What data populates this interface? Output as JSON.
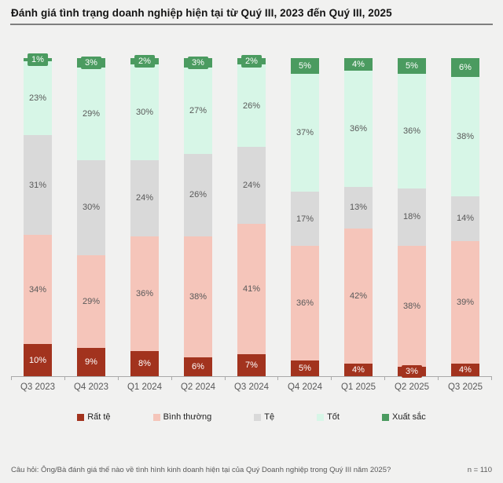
{
  "title": "Đánh giá tình trạng doanh nghiệp hiện tại từ Quý III, 2023 đến Quý III, 2025",
  "chart_data": {
    "type": "bar",
    "stacked": true,
    "orientation": "vertical",
    "unit": "%",
    "categories": [
      "Q3 2023",
      "Q4 2023",
      "Q1 2024",
      "Q2 2024",
      "Q3 2024",
      "Q4 2024",
      "Q1 2025",
      "Q2 2025",
      "Q3 2025"
    ],
    "series": [
      {
        "name": "Rất tệ",
        "color": "#a2331e",
        "label_color": "#ffffff",
        "label_style": "badge",
        "values": [
          10,
          9,
          8,
          6,
          7,
          5,
          4,
          3,
          4
        ]
      },
      {
        "name": "Bình thường",
        "color": "#f5c5ba",
        "label_color": "#595959",
        "label_style": "plain",
        "values": [
          34,
          29,
          36,
          38,
          41,
          36,
          42,
          38,
          39
        ]
      },
      {
        "name": "Tệ",
        "color": "#d9d9d9",
        "label_color": "#595959",
        "label_style": "plain",
        "values": [
          31,
          30,
          24,
          26,
          24,
          17,
          13,
          18,
          14
        ]
      },
      {
        "name": "Tốt",
        "color": "#d7f6e7",
        "label_color": "#595959",
        "label_style": "plain",
        "values": [
          23,
          29,
          30,
          27,
          26,
          37,
          36,
          36,
          38
        ]
      },
      {
        "name": "Xuất sắc",
        "color": "#4b9b60",
        "label_color": "#ffffff",
        "label_style": "badge",
        "values": [
          1,
          3,
          2,
          3,
          2,
          5,
          4,
          5,
          6
        ]
      }
    ],
    "ylim": [
      0,
      100
    ],
    "grid": false,
    "legend_position": "bottom",
    "axis_color": "#a9a9a9"
  },
  "footer": {
    "question": "Câu hỏi: Ông/Bà đánh giá thế nào về tình hình kinh doanh hiện tại của Quý Doanh nghiệp trong Quý III năm 2025?",
    "sample_size": "n = 110"
  }
}
